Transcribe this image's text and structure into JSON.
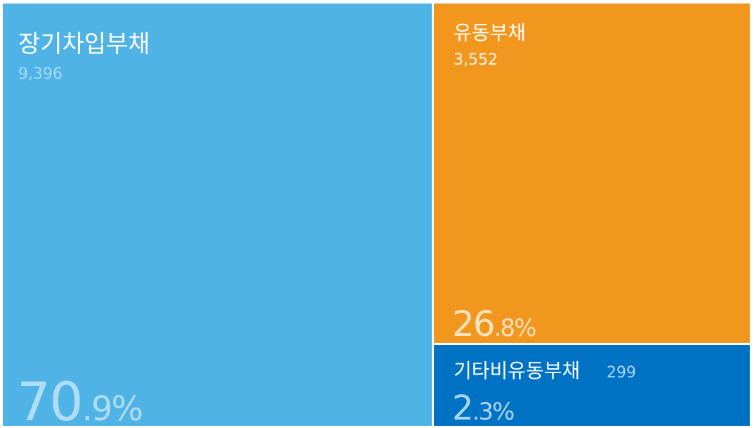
{
  "chart_data": {
    "type": "treemap",
    "categories": [
      "장기차입부채",
      "유동부채",
      "기타비유동부채"
    ],
    "values": [
      9396,
      3552,
      299
    ],
    "value_labels": [
      "9,396",
      "3,552",
      "299"
    ],
    "shares": [
      70.9,
      26.8,
      2.3
    ],
    "share_labels": [
      "70.9%",
      "26.8%",
      "2.3%"
    ],
    "colors": [
      "#4fb3e6",
      "#f2971e",
      "#0072c4"
    ]
  }
}
